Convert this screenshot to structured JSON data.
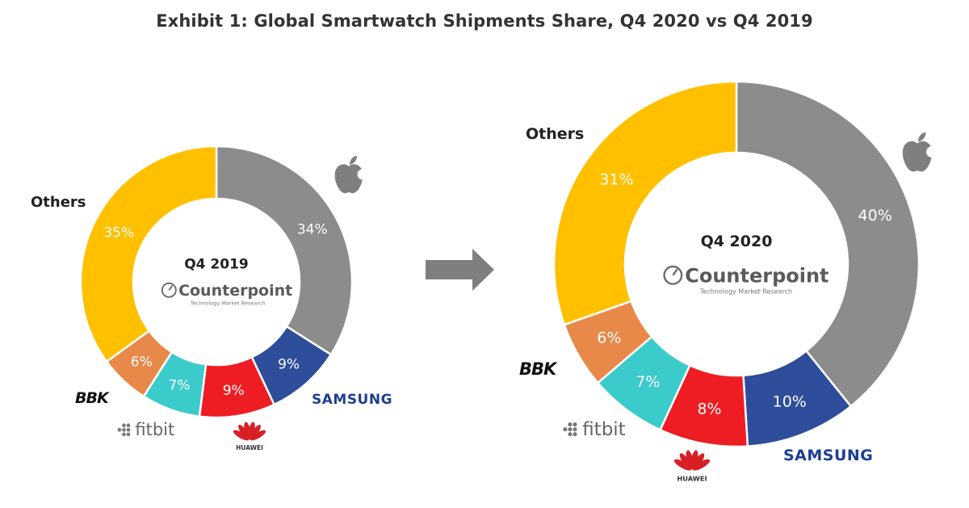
{
  "title": "Exhibit 1: Global Smartwatch Shipments Share, Q4 2020 vs Q4 2019",
  "colors": {
    "apple": "#8c8c8c",
    "samsung": "#2e4d9a",
    "huawei": "#ee1d23",
    "fitbit": "#3ccbcb",
    "bbk": "#e8894a",
    "others": "#ffc000",
    "arrow": "#7f7f7f"
  },
  "brands": {
    "apple": "apple-logo",
    "samsung": "SAMSUNG",
    "huawei": "HUAWEI",
    "fitbit": "fitbit",
    "bbk": "BBK",
    "others": "Others"
  },
  "center": {
    "logo_text": "Counterpoint",
    "logo_sub": "Technology Market Research"
  },
  "chart_data": [
    {
      "type": "pie",
      "variant": "donut",
      "title": "Q4 2019",
      "categories": [
        "Apple",
        "Samsung",
        "Huawei",
        "Fitbit",
        "BBK",
        "Others"
      ],
      "values": [
        34,
        9,
        9,
        7,
        6,
        35
      ],
      "labels": [
        "34%",
        "9%",
        "9%",
        "7%",
        "6%",
        "35%"
      ]
    },
    {
      "type": "pie",
      "variant": "donut",
      "title": "Q4 2020",
      "categories": [
        "Apple",
        "Samsung",
        "Huawei",
        "Fitbit",
        "BBK",
        "Others"
      ],
      "values": [
        40,
        10,
        8,
        7,
        6,
        31
      ],
      "labels": [
        "40%",
        "10%",
        "8%",
        "7%",
        "6%",
        "31%"
      ]
    }
  ]
}
